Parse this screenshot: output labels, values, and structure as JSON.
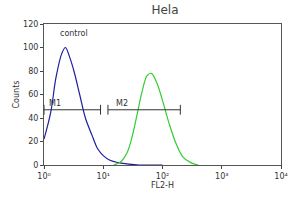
{
  "chart_data": {
    "type": "line",
    "title": "Hela",
    "xlabel": "FL2-H",
    "ylabel": "Counts",
    "log": "x",
    "xlim": [
      1,
      10000
    ],
    "xticks": [
      {
        "value": 1,
        "label": "10⁰"
      },
      {
        "value": 10,
        "label": "10¹"
      },
      {
        "value": 100,
        "label": "10²"
      },
      {
        "value": 1000,
        "label": "10³"
      },
      {
        "value": 10000,
        "label": "10⁴"
      }
    ],
    "ylim": [
      0,
      120
    ],
    "yticks": [
      0,
      20,
      40,
      60,
      80,
      100,
      120
    ],
    "series": [
      {
        "name": "control",
        "color": "#1f1f9e",
        "x": [
          1,
          1.3,
          1.6,
          2,
          2.3,
          2.7,
          3.2,
          4,
          5,
          6.5,
          8,
          10,
          13,
          18,
          25,
          40,
          100
        ],
        "values": [
          22,
          45,
          75,
          95,
          100,
          92,
          80,
          60,
          40,
          25,
          14,
          8,
          4,
          2,
          1,
          0,
          0
        ]
      },
      {
        "color": "#33cc33",
        "x": [
          15,
          20,
          25,
          30,
          38,
          45,
          55,
          65,
          80,
          100,
          130,
          170,
          220,
          300,
          400
        ],
        "values": [
          0,
          3,
          10,
          22,
          45,
          62,
          76,
          78,
          70,
          55,
          35,
          18,
          7,
          2,
          0
        ]
      }
    ],
    "gates": [
      {
        "label": "M1",
        "x": [
          1,
          9
        ],
        "y": 47
      },
      {
        "label": "M2",
        "x": [
          12,
          200
        ],
        "y": 47
      }
    ],
    "annotations": [
      {
        "text": "control",
        "x": 1.7,
        "y": 112
      }
    ]
  }
}
